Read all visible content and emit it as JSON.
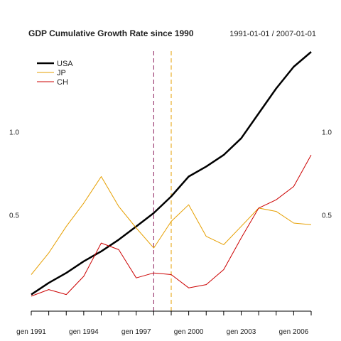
{
  "chart_data": {
    "type": "line",
    "title": "GDP Cumulative Growth Rate since 1990",
    "date_range": "1991-01-01 / 2007-01-01",
    "xlabel": "",
    "ylabel": "",
    "x": [
      "1991",
      "1992",
      "1993",
      "1994",
      "1995",
      "1996",
      "1997",
      "1998",
      "1999",
      "2000",
      "2001",
      "2002",
      "2003",
      "2004",
      "2005",
      "2006",
      "2007"
    ],
    "x_tick_labels": [
      {
        "year": "1991",
        "label": "gen 1991"
      },
      {
        "year": "1994",
        "label": "gen 1994"
      },
      {
        "year": "1997",
        "label": "gen 1997"
      },
      {
        "year": "2000",
        "label": "gen 2000"
      },
      {
        "year": "2003",
        "label": "gen 2003"
      },
      {
        "year": "2006",
        "label": "gen 2006"
      }
    ],
    "y_ticks": [
      {
        "value": 0.5,
        "label": "0.5"
      },
      {
        "value": 1.0,
        "label": "1.0"
      }
    ],
    "ylim": [
      -0.08,
      1.45
    ],
    "grid": false,
    "legend_position": "top-left",
    "series": [
      {
        "name": "USA",
        "color": "#000000",
        "values": [
          0.02,
          0.09,
          0.15,
          0.22,
          0.28,
          0.35,
          0.43,
          0.51,
          0.61,
          0.73,
          0.79,
          0.86,
          0.96,
          1.11,
          1.26,
          1.39,
          1.48
        ]
      },
      {
        "name": "JP",
        "color": "#E69F00",
        "values": [
          0.14,
          0.27,
          0.43,
          0.57,
          0.73,
          0.55,
          0.42,
          0.3,
          0.46,
          0.56,
          0.37,
          0.32,
          0.43,
          0.54,
          0.52,
          0.45,
          0.44
        ]
      },
      {
        "name": "CH",
        "color": "#CC0000",
        "values": [
          0.01,
          0.05,
          0.02,
          0.13,
          0.33,
          0.29,
          0.12,
          0.15,
          0.14,
          0.06,
          0.08,
          0.17,
          0.36,
          0.54,
          0.59,
          0.67,
          0.86
        ]
      }
    ],
    "vlines": [
      {
        "x": "1998",
        "color": "#8B1A5A"
      },
      {
        "x": "1999",
        "color": "#E69F00"
      }
    ]
  }
}
